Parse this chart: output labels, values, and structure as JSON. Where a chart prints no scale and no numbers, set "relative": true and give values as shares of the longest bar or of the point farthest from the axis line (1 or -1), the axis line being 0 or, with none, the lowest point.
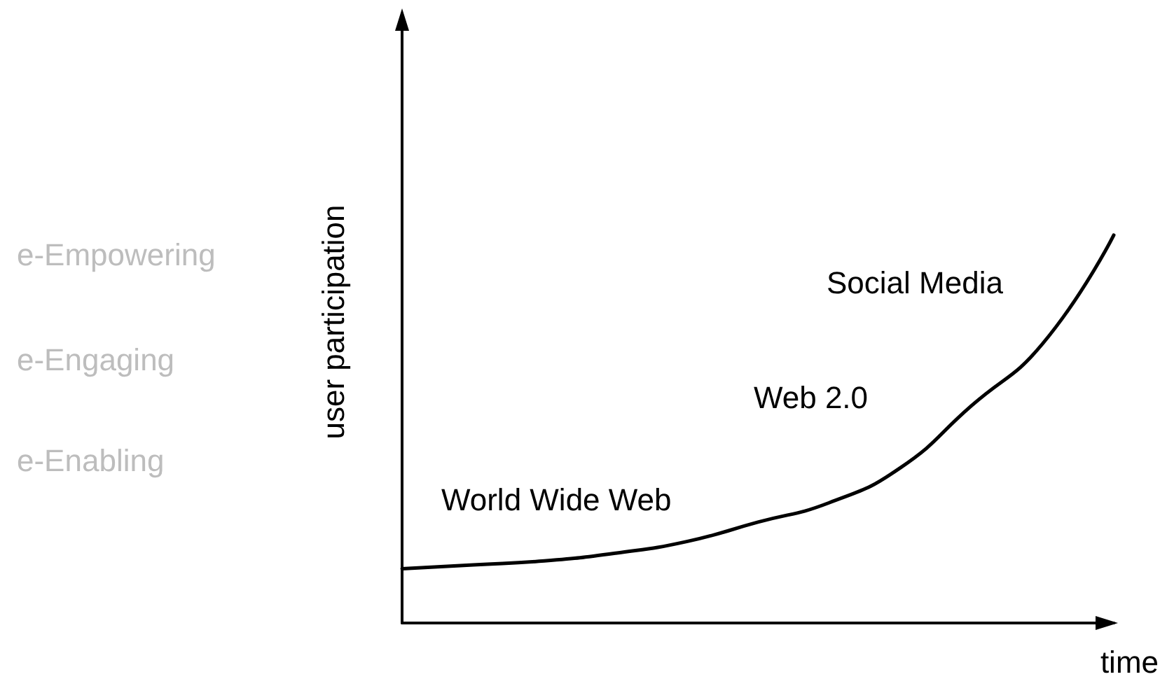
{
  "chart_data": {
    "type": "line",
    "relative": true,
    "xlabel": "time",
    "ylabel": "user participation",
    "categories": [
      null,
      null,
      null,
      null,
      null,
      null,
      null,
      null,
      null,
      null,
      null
    ],
    "series": [
      {
        "color": "#000000",
        "values": [
          0.14,
          0.15,
          0.16,
          0.18,
          0.21,
          0.26,
          0.31,
          0.4,
          0.56,
          0.72,
          1
        ]
      }
    ],
    "marker": "none",
    "grid": false,
    "annotations": [
      "World Wide Web",
      "Web 2.0",
      "Social Media",
      "e-Empowering",
      "e-Engaging",
      "e-Enabling"
    ]
  }
}
